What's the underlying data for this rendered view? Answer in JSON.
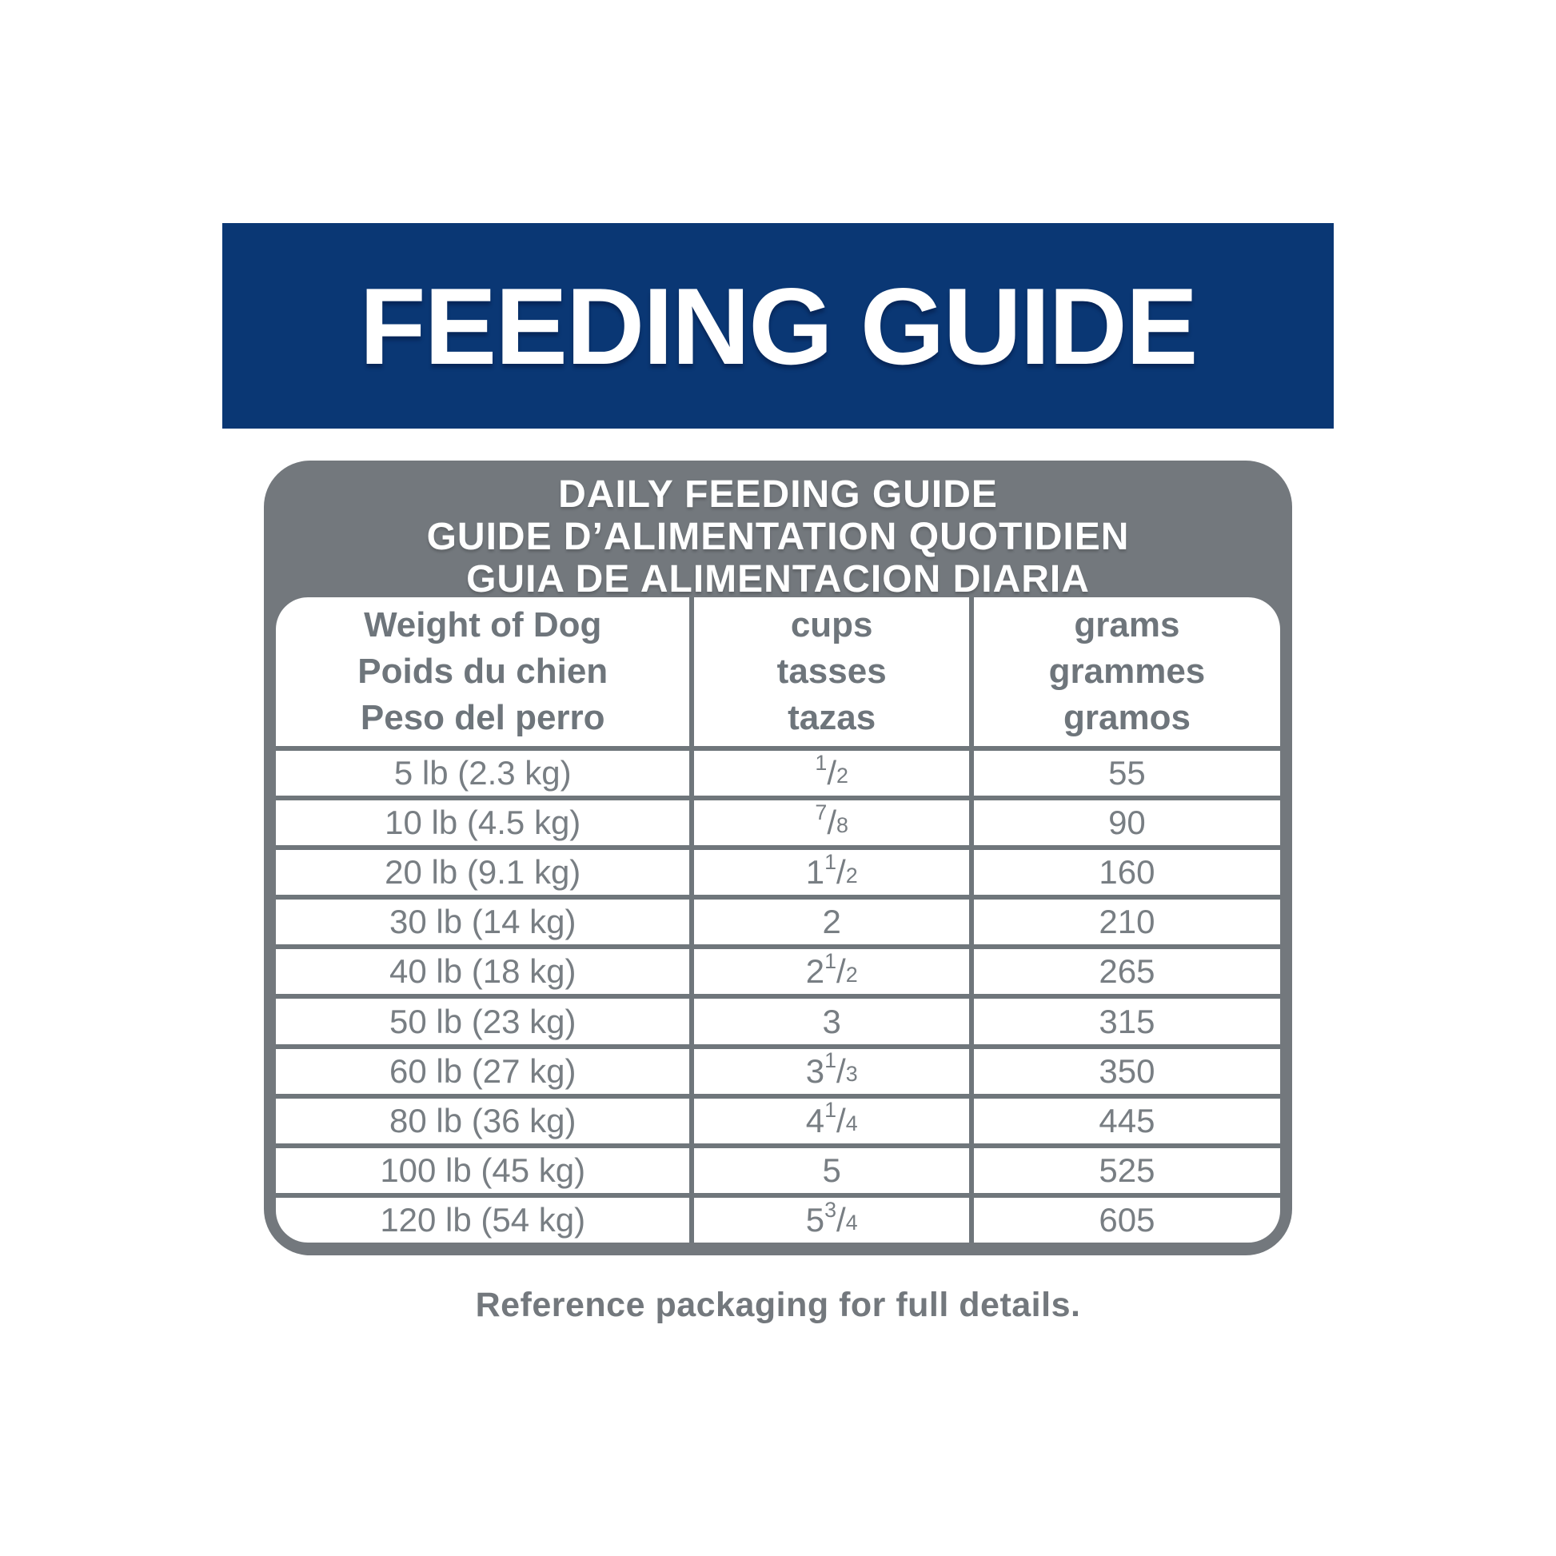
{
  "banner": {
    "title": "FEEDING GUIDE"
  },
  "card": {
    "title_lines": [
      "DAILY FEEDING GUIDE",
      "GUIDE D’ALIMENTATION QUOTIDIEN",
      "GUIA DE ALIMENTACION DIARIA"
    ]
  },
  "table": {
    "columns": [
      {
        "lines": [
          "Weight of Dog",
          "Poids du chien",
          "Peso del perro"
        ]
      },
      {
        "lines": [
          "cups",
          "tasses",
          "tazas"
        ]
      },
      {
        "lines": [
          "grams",
          "grammes",
          "gramos"
        ]
      }
    ],
    "rows": [
      {
        "weight": "5 lb (2.3 kg)",
        "cups": "1/2",
        "grams": "55"
      },
      {
        "weight": "10 lb (4.5 kg)",
        "cups": "7/8",
        "grams": "90"
      },
      {
        "weight": "20 lb (9.1 kg)",
        "cups": "1 1/2",
        "grams": "160"
      },
      {
        "weight": "30 lb (14 kg)",
        "cups": "2",
        "grams": "210"
      },
      {
        "weight": "40 lb (18 kg)",
        "cups": "2 1/2",
        "grams": "265"
      },
      {
        "weight": "50 lb (23 kg)",
        "cups": "3",
        "grams": "315"
      },
      {
        "weight": "60 lb (27 kg)",
        "cups": "3 1/3",
        "grams": "350"
      },
      {
        "weight": "80 lb (36 kg)",
        "cups": "4 1/4",
        "grams": "445"
      },
      {
        "weight": "100 lb (45 kg)",
        "cups": "5",
        "grams": "525"
      },
      {
        "weight": "120 lb (54 kg)",
        "cups": "5 3/4",
        "grams": "605"
      }
    ]
  },
  "footer": {
    "note": "Reference packaging for full details."
  },
  "colors": {
    "brand_blue": "#0a3774",
    "surface_gray": "#73787d",
    "line_gray": "#6f767b",
    "text_gray": "#787e83",
    "header_text_gray": "#6e757b",
    "white": "#ffffff"
  }
}
